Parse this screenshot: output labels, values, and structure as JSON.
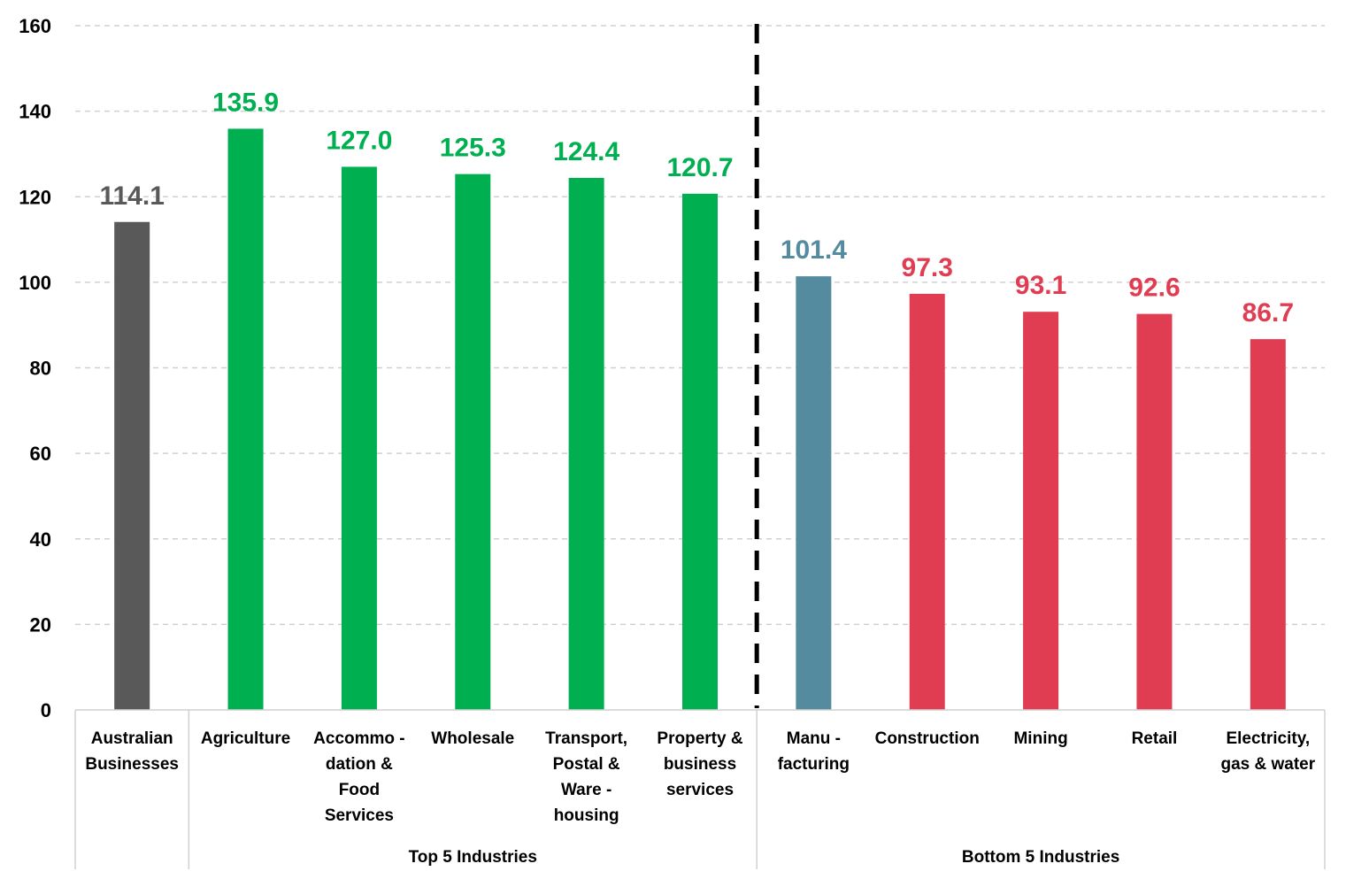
{
  "chart_data": {
    "type": "bar",
    "title": "",
    "xlabel": "",
    "ylabel": "",
    "ylim": [
      0,
      160
    ],
    "yticks": [
      0,
      20,
      40,
      60,
      80,
      100,
      120,
      140,
      160
    ],
    "grid": true,
    "categories": [
      {
        "lines": [
          "Australian",
          "Businesses"
        ],
        "value": 114.1,
        "label": "114.1",
        "color": "#595959"
      },
      {
        "lines": [
          "Agriculture"
        ],
        "value": 135.9,
        "label": "135.9",
        "color": "#00B050"
      },
      {
        "lines": [
          "Accommo -",
          "dation &",
          "Food",
          "Services"
        ],
        "value": 127.0,
        "label": "127.0",
        "color": "#00B050"
      },
      {
        "lines": [
          "Wholesale"
        ],
        "value": 125.3,
        "label": "125.3",
        "color": "#00B050"
      },
      {
        "lines": [
          "Transport,",
          "Postal &",
          "Ware -",
          "housing"
        ],
        "value": 124.4,
        "label": "124.4",
        "color": "#00B050"
      },
      {
        "lines": [
          "Property &",
          "business",
          "services"
        ],
        "value": 120.7,
        "label": "120.7",
        "color": "#00B050"
      },
      {
        "lines": [
          "Manu -",
          "facturing"
        ],
        "value": 101.4,
        "label": "101.4",
        "color": "#558B9F"
      },
      {
        "lines": [
          "Construction"
        ],
        "value": 97.3,
        "label": "97.3",
        "color": "#E03C52"
      },
      {
        "lines": [
          "Mining"
        ],
        "value": 93.1,
        "label": "93.1",
        "color": "#E03C52"
      },
      {
        "lines": [
          "Retail"
        ],
        "value": 92.6,
        "label": "92.6",
        "color": "#E03C52"
      },
      {
        "lines": [
          "Electricity,",
          "gas & water"
        ],
        "value": 86.7,
        "label": "86.7",
        "color": "#E03C52"
      }
    ],
    "groups": [
      {
        "label": "Top 5 Industries",
        "from": 1,
        "to": 5
      },
      {
        "label": "Bottom 5 Industries",
        "from": 6,
        "to": 10
      }
    ],
    "divider": {
      "style": "dashed",
      "between": [
        5,
        6
      ]
    }
  }
}
